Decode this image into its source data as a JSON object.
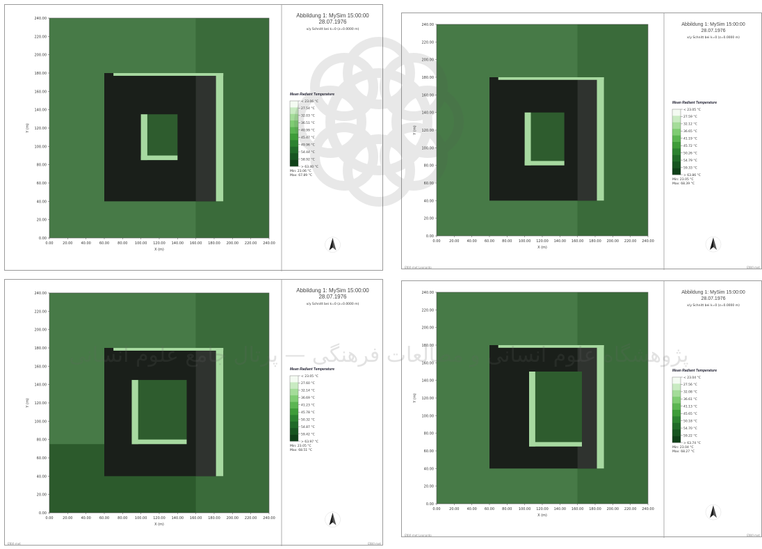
{
  "chart_data": [
    {
      "type": "heatmap",
      "title": "Abbildung 1:  MySim 15:00:00",
      "subtitle": "28.07.1976",
      "caption": "x/y Schnitt bei k=0 (z=0.0000 m)",
      "xlabel": "X (m)",
      "ylabel": "Y (m)",
      "xlim": [
        0,
        240
      ],
      "ylim": [
        0,
        240
      ],
      "xticks": [
        "0.00",
        "20.00",
        "40.00",
        "60.00",
        "80.00",
        "100.00",
        "120.00",
        "140.00",
        "160.00",
        "180.00",
        "200.00",
        "220.00",
        "240.00"
      ],
      "yticks": [
        "0.00",
        "20.00",
        "40.00",
        "60.00",
        "80.00",
        "100.00",
        "120.00",
        "140.00",
        "160.00",
        "180.00",
        "200.00",
        "220.00",
        "240.00"
      ],
      "legend_title": "Mean Radiant Temperature",
      "legend_entries": [
        "< 23.06 °C",
        "27.54 °C",
        "32.03 °C",
        "36.51 °C",
        "40.99 °C",
        "45.47 °C",
        "49.96 °C",
        "54.44 °C",
        "58.92 °C",
        "> 63.40 °C"
      ],
      "min_label": "Min: 23.06 °C",
      "max_label": "Max: 67.89 °C",
      "outer_square": [
        60,
        40,
        190,
        180
      ],
      "inner_square": [
        100,
        85,
        140,
        135
      ],
      "shade_x_from": 160,
      "shade_y_from": 0,
      "compass": "north-arrow"
    },
    {
      "type": "heatmap",
      "title": "Abbildung 1:  MySim 15:00:00",
      "subtitle": "28.07.1976",
      "caption": "x/y Schnitt bei k=0 (z=0.0000 m)",
      "xlabel": "X (m)",
      "ylabel": "Y (m)",
      "xlim": [
        0,
        240
      ],
      "ylim": [
        0,
        240
      ],
      "xticks": [
        "0.00",
        "20.00",
        "40.00",
        "60.00",
        "80.00",
        "100.00",
        "120.00",
        "140.00",
        "160.00",
        "180.00",
        "200.00",
        "220.00",
        "240.00"
      ],
      "yticks": [
        "0.00",
        "20.00",
        "40.00",
        "60.00",
        "80.00",
        "100.00",
        "120.00",
        "140.00",
        "160.00",
        "180.00",
        "200.00",
        "220.00",
        "240.00"
      ],
      "legend_title": "Mean Radiant Temperature",
      "legend_entries": [
        "< 23.05 °C",
        "27.59 °C",
        "32.12 °C",
        "36.65 °C",
        "41.19 °C",
        "45.72 °C",
        "50.26 °C",
        "54.79 °C",
        "59.33 °C",
        "> 63.86 °C"
      ],
      "min_label": "Min: 23.05 °C",
      "max_label": "Max: 68.39 °C",
      "outer_square": [
        60,
        40,
        190,
        180
      ],
      "inner_square": [
        100,
        80,
        145,
        140
      ],
      "shade_x_from": 160,
      "shade_y_from": 0,
      "compass": "north-arrow"
    },
    {
      "type": "heatmap",
      "title": "Abbildung 1:  MySim 15:00:00",
      "subtitle": "28.07.1976",
      "caption": "x/y Schnitt bei k=0 (z=0.0000 m)",
      "xlabel": "X (m)",
      "ylabel": "Y (m)",
      "xlim": [
        0,
        240
      ],
      "ylim": [
        0,
        240
      ],
      "xticks": [
        "0.00",
        "20.00",
        "40.00",
        "60.00",
        "80.00",
        "100.00",
        "120.00",
        "140.00",
        "160.00",
        "180.00",
        "200.00",
        "220.00",
        "240.00"
      ],
      "yticks": [
        "0.00",
        "20.00",
        "40.00",
        "60.00",
        "80.00",
        "100.00",
        "120.00",
        "140.00",
        "160.00",
        "180.00",
        "200.00",
        "220.00",
        "240.00"
      ],
      "legend_title": "Mean Radiant Temperature",
      "legend_entries": [
        "< 23.05 °C",
        "27.60 °C",
        "32.14 °C",
        "36.69 °C",
        "41.23 °C",
        "45.78 °C",
        "50.32 °C",
        "54.87 °C",
        "59.42 °C",
        "> 63.97 °C"
      ],
      "min_label": "Min: 23.05 °C",
      "max_label": "Max: 68.51 °C",
      "outer_square": [
        60,
        40,
        190,
        180
      ],
      "inner_square": [
        90,
        75,
        150,
        145
      ],
      "shade_x_from": 160,
      "shade_y_from": 75,
      "compass": "north-arrow"
    },
    {
      "type": "heatmap",
      "title": "Abbildung 1:  MySim 15:00:00",
      "subtitle": "28.07.1976",
      "caption": "x/y Schnitt bei k=0 (z=0.0000 m)",
      "xlabel": "X (m)",
      "ylabel": "Y (m)",
      "xlim": [
        0,
        240
      ],
      "ylim": [
        0,
        240
      ],
      "xticks": [
        "0.00",
        "20.00",
        "40.00",
        "60.00",
        "80.00",
        "100.00",
        "120.00",
        "140.00",
        "160.00",
        "180.00",
        "200.00",
        "220.00",
        "240.00"
      ],
      "yticks": [
        "0.00",
        "20.00",
        "40.00",
        "60.00",
        "80.00",
        "100.00",
        "120.00",
        "140.00",
        "160.00",
        "180.00",
        "200.00",
        "220.00",
        "240.00"
      ],
      "legend_title": "Mean Radiant Temperature",
      "legend_entries": [
        "< 23.04 °C",
        "27.56 °C",
        "32.08 °C",
        "36.61 °C",
        "41.13 °C",
        "45.65 °C",
        "50.18 °C",
        "54.70 °C",
        "59.22 °C",
        "> 63.74 °C"
      ],
      "min_label": "Min: 23.04 °C",
      "max_label": "Max: 68.27 °C",
      "outer_square": [
        60,
        40,
        190,
        180
      ],
      "inner_square": [
        105,
        65,
        165,
        150
      ],
      "shade_x_from": 160,
      "shade_y_from": 0,
      "compass": "north-arrow"
    }
  ],
  "footers": [
    {
      "left": "",
      "right": ""
    },
    {
      "left": "ENVI-met Leonardo",
      "right": "ENVI-met"
    },
    {
      "left": "ENVI-met",
      "right": "ENVI-met"
    },
    {
      "left": "ENVI-met Leonardo",
      "right": "ENVI-met"
    }
  ],
  "colors": {
    "background_dark": "#2c5a2c",
    "shade_light": "#477a47",
    "building": "#1a1f1a",
    "building_shade": "#2f332f",
    "hot_strip": "#a7d9a0",
    "inner_court": "#2e5c2e",
    "inner_court_shaded": "#3f6d3f",
    "legend_ramp": [
      "#f4fbf2",
      "#c9ebc2",
      "#a4dc99",
      "#7fcc73",
      "#5bb552",
      "#3e9c39",
      "#2c8230",
      "#206a28",
      "#175520",
      "#0f4018"
    ]
  },
  "watermark": "پژوهشگاه علوم انسانی و مطالعات فرهنگی — پرتال جامع علوم انسانی"
}
